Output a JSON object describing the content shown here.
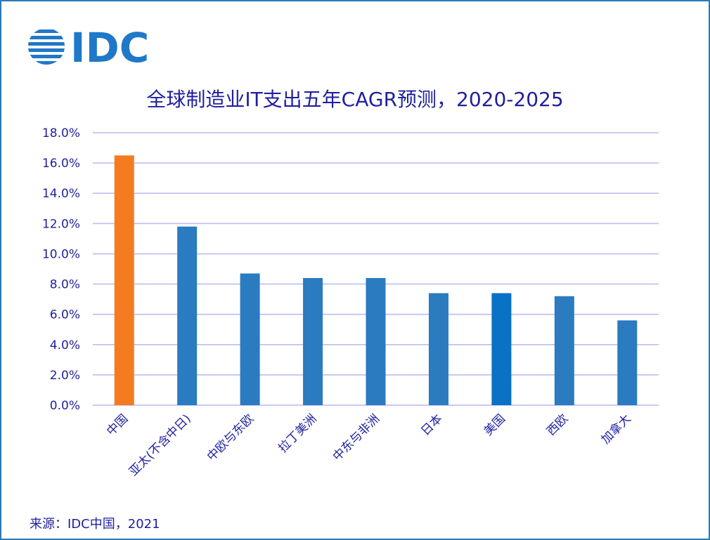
{
  "logo": {
    "text": "IDC",
    "icon": "idc-globe-logo"
  },
  "colors": {
    "primary_bar": "#2a7bbf",
    "highlight_bar": "#f47b20",
    "us_bar": "#0a72c4",
    "grid": "#b8b8f0",
    "axis_text": "#1f1f9e",
    "frame": "#2a7ab8"
  },
  "chart_data": {
    "type": "bar",
    "title": "全球制造业IT支出五年CAGR预测，2020-2025",
    "categories": [
      "中国",
      "亚太(不含中日)",
      "中欧与东欧",
      "拉丁美洲",
      "中东与非洲",
      "日本",
      "美国",
      "西欧",
      "加拿大"
    ],
    "values": [
      16.5,
      11.8,
      8.7,
      8.4,
      8.4,
      7.4,
      7.4,
      7.2,
      5.6
    ],
    "ylim": [
      0,
      18
    ],
    "yticks": [
      "0.0%",
      "2.0%",
      "4.0%",
      "6.0%",
      "8.0%",
      "10.0%",
      "12.0%",
      "14.0%",
      "16.0%",
      "18.0%"
    ],
    "highlight_category": "中国",
    "grid": true,
    "xlabel": "",
    "ylabel": ""
  },
  "source": "来源：IDC中国，2021"
}
